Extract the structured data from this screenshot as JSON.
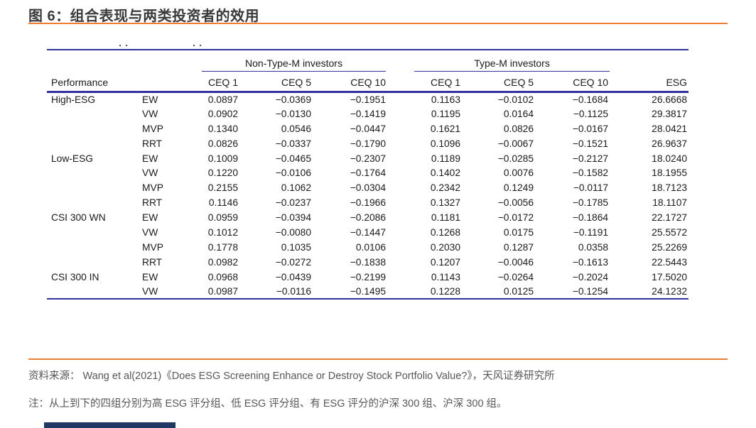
{
  "title": "图 6：组合表现与两类投资者的效用",
  "colors": {
    "accent_orange": "#ED7D31",
    "rule_navy": "#32329E",
    "footer_bar_navy": "#1F3864",
    "title_text": "#3A3A3A",
    "body_text": "#1B1B1B",
    "footer_text": "#575757"
  },
  "table": {
    "performance_label": "Performance",
    "group_headers": [
      "Non-Type-M investors",
      "Type-M investors"
    ],
    "sub_headers": [
      "CEQ 1",
      "CEQ 5",
      "CEQ 10",
      "CEQ 1",
      "CEQ 5",
      "CEQ 10"
    ],
    "esg_header": "ESG",
    "rows": [
      {
        "group": "High-ESG",
        "method": "EW",
        "values": [
          "0.0897",
          "−0.0369",
          "−0.1951",
          "0.1163",
          "−0.0102",
          "−0.1684",
          "26.6668"
        ]
      },
      {
        "group": "",
        "method": "VW",
        "values": [
          "0.0902",
          "−0.0130",
          "−0.1419",
          "0.1195",
          "0.0164",
          "−0.1125",
          "29.3817"
        ]
      },
      {
        "group": "",
        "method": "MVP",
        "values": [
          "0.1340",
          "0.0546",
          "−0.0447",
          "0.1621",
          "0.0826",
          "−0.0167",
          "28.0421"
        ]
      },
      {
        "group": "",
        "method": "RRT",
        "values": [
          "0.0826",
          "−0.0337",
          "−0.1790",
          "0.1096",
          "−0.0067",
          "−0.1521",
          "26.9637"
        ]
      },
      {
        "group": "Low-ESG",
        "method": "EW",
        "values": [
          "0.1009",
          "−0.0465",
          "−0.2307",
          "0.1189",
          "−0.0285",
          "−0.2127",
          "18.0240"
        ]
      },
      {
        "group": "",
        "method": "VW",
        "values": [
          "0.1220",
          "−0.0106",
          "−0.1764",
          "0.1402",
          "0.0076",
          "−0.1582",
          "18.1955"
        ]
      },
      {
        "group": "",
        "method": "MVP",
        "values": [
          "0.2155",
          "0.1062",
          "−0.0304",
          "0.2342",
          "0.1249",
          "−0.0117",
          "18.7123"
        ]
      },
      {
        "group": "",
        "method": "RRT",
        "values": [
          "0.1146",
          "−0.0237",
          "−0.1966",
          "0.1327",
          "−0.0056",
          "−0.1785",
          "18.1107"
        ]
      },
      {
        "group": "CSI 300 WN",
        "method": "EW",
        "values": [
          "0.0959",
          "−0.0394",
          "−0.2086",
          "0.1181",
          "−0.0172",
          "−0.1864",
          "22.1727"
        ]
      },
      {
        "group": "",
        "method": "VW",
        "values": [
          "0.1012",
          "−0.0080",
          "−0.1447",
          "0.1268",
          "0.0175",
          "−0.1191",
          "25.5572"
        ]
      },
      {
        "group": "",
        "method": "MVP",
        "values": [
          "0.1778",
          "0.1035",
          "0.0106",
          "0.2030",
          "0.1287",
          "0.0358",
          "25.2269"
        ]
      },
      {
        "group": "",
        "method": "RRT",
        "values": [
          "0.0982",
          "−0.0272",
          "−0.1838",
          "0.1207",
          "−0.0046",
          "−0.1613",
          "22.5443"
        ]
      },
      {
        "group": "CSI 300 IN",
        "method": "EW",
        "values": [
          "0.0968",
          "−0.0439",
          "−0.2199",
          "0.1143",
          "−0.0264",
          "−0.2024",
          "17.5020"
        ]
      },
      {
        "group": "",
        "method": "VW",
        "values": [
          "0.0987",
          "−0.0116",
          "−0.1495",
          "0.1228",
          "0.0125",
          "−0.1254",
          "24.1232"
        ]
      }
    ]
  },
  "footer": {
    "source": "资料来源： Wang et al(2021)《Does ESG Screening Enhance or Destroy Stock Portfolio Value?》，天风证券研究所",
    "note": "注：从上到下的四组分别为高 ESG 评分组、低 ESG 评分组、有 ESG 评分的沪深 300 组、沪深 300 组。"
  }
}
